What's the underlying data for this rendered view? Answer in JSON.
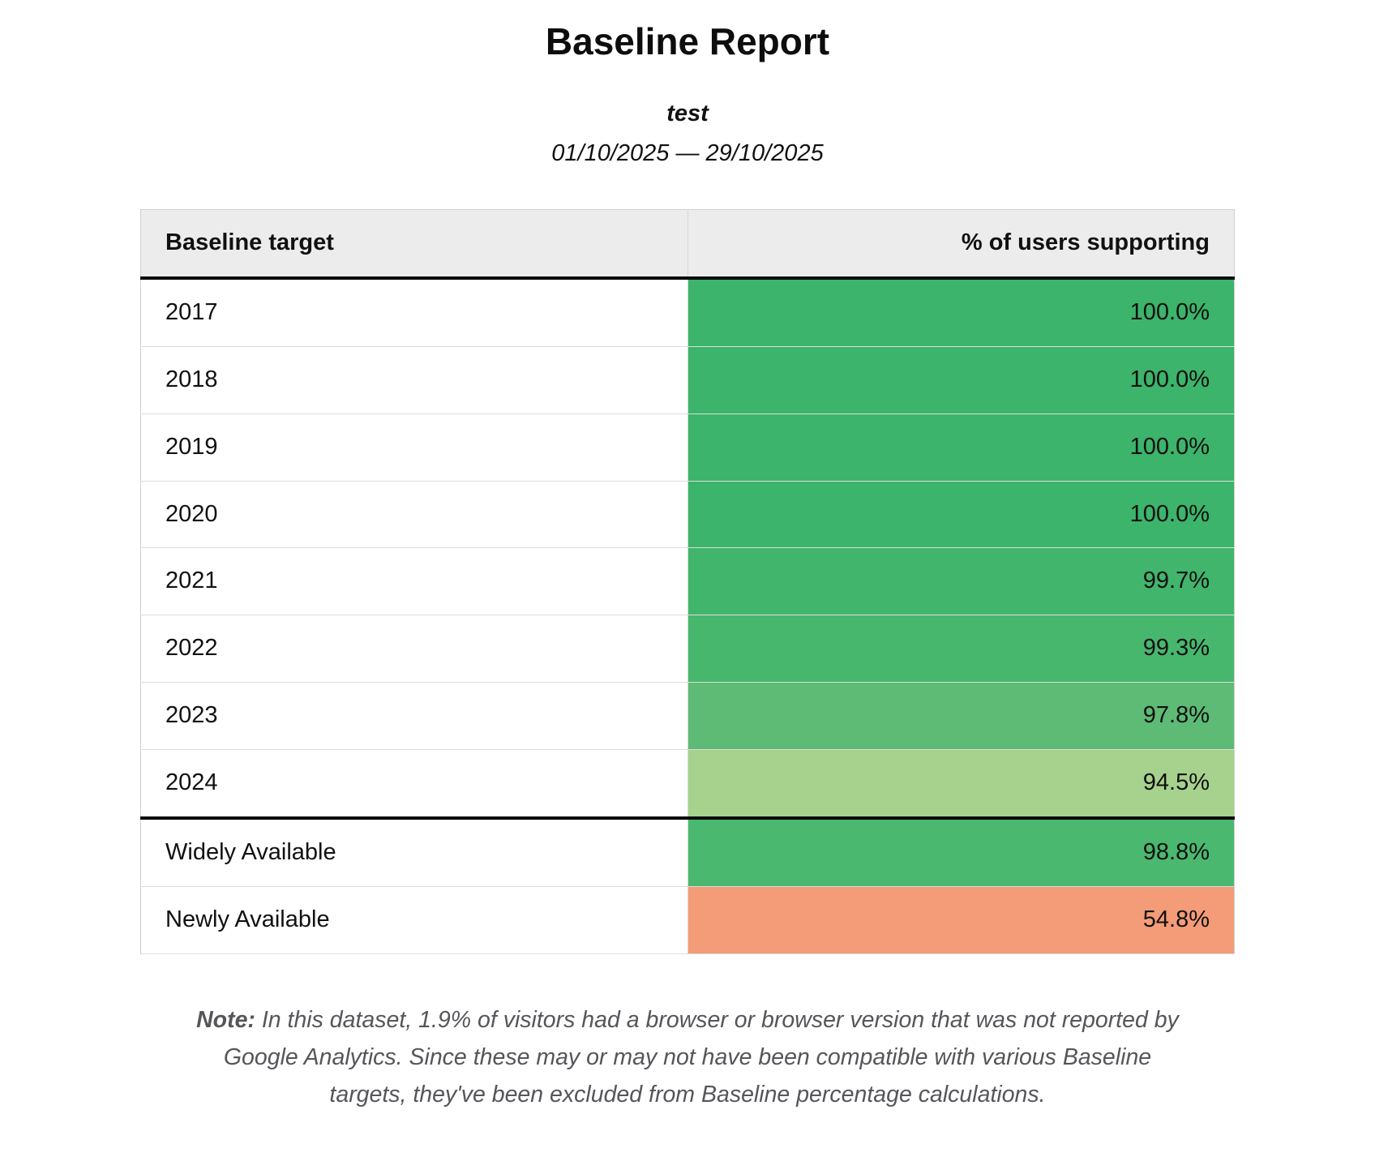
{
  "report": {
    "title": "Baseline Report",
    "subtitle": "test",
    "date_range": "01/10/2025 — 29/10/2025"
  },
  "table": {
    "headers": [
      "Baseline target",
      "% of users supporting"
    ],
    "groups": [
      {
        "rows": [
          {
            "label": "2017",
            "value": "100.0%",
            "color": "#3cb46b"
          },
          {
            "label": "2018",
            "value": "100.0%",
            "color": "#3cb46b"
          },
          {
            "label": "2019",
            "value": "100.0%",
            "color": "#3cb46b"
          },
          {
            "label": "2020",
            "value": "100.0%",
            "color": "#3cb46b"
          },
          {
            "label": "2021",
            "value": "99.7%",
            "color": "#41b56c"
          },
          {
            "label": "2022",
            "value": "99.3%",
            "color": "#48b76e"
          },
          {
            "label": "2023",
            "value": "97.8%",
            "color": "#5dbb75"
          },
          {
            "label": "2024",
            "value": "94.5%",
            "color": "#a7d28d"
          }
        ]
      },
      {
        "rows": [
          {
            "label": "Widely Available",
            "value": "98.8%",
            "color": "#4bb870"
          },
          {
            "label": "Newly Available",
            "value": "54.8%",
            "color": "#f49b78"
          }
        ]
      }
    ]
  },
  "note": {
    "label": "Note:",
    "text": "In this dataset, 1.9% of visitors had a browser or browser version that was not reported by Google Analytics. Since these may or may not have been compatible with various Baseline targets, they've been excluded from Baseline percentage calculations."
  }
}
